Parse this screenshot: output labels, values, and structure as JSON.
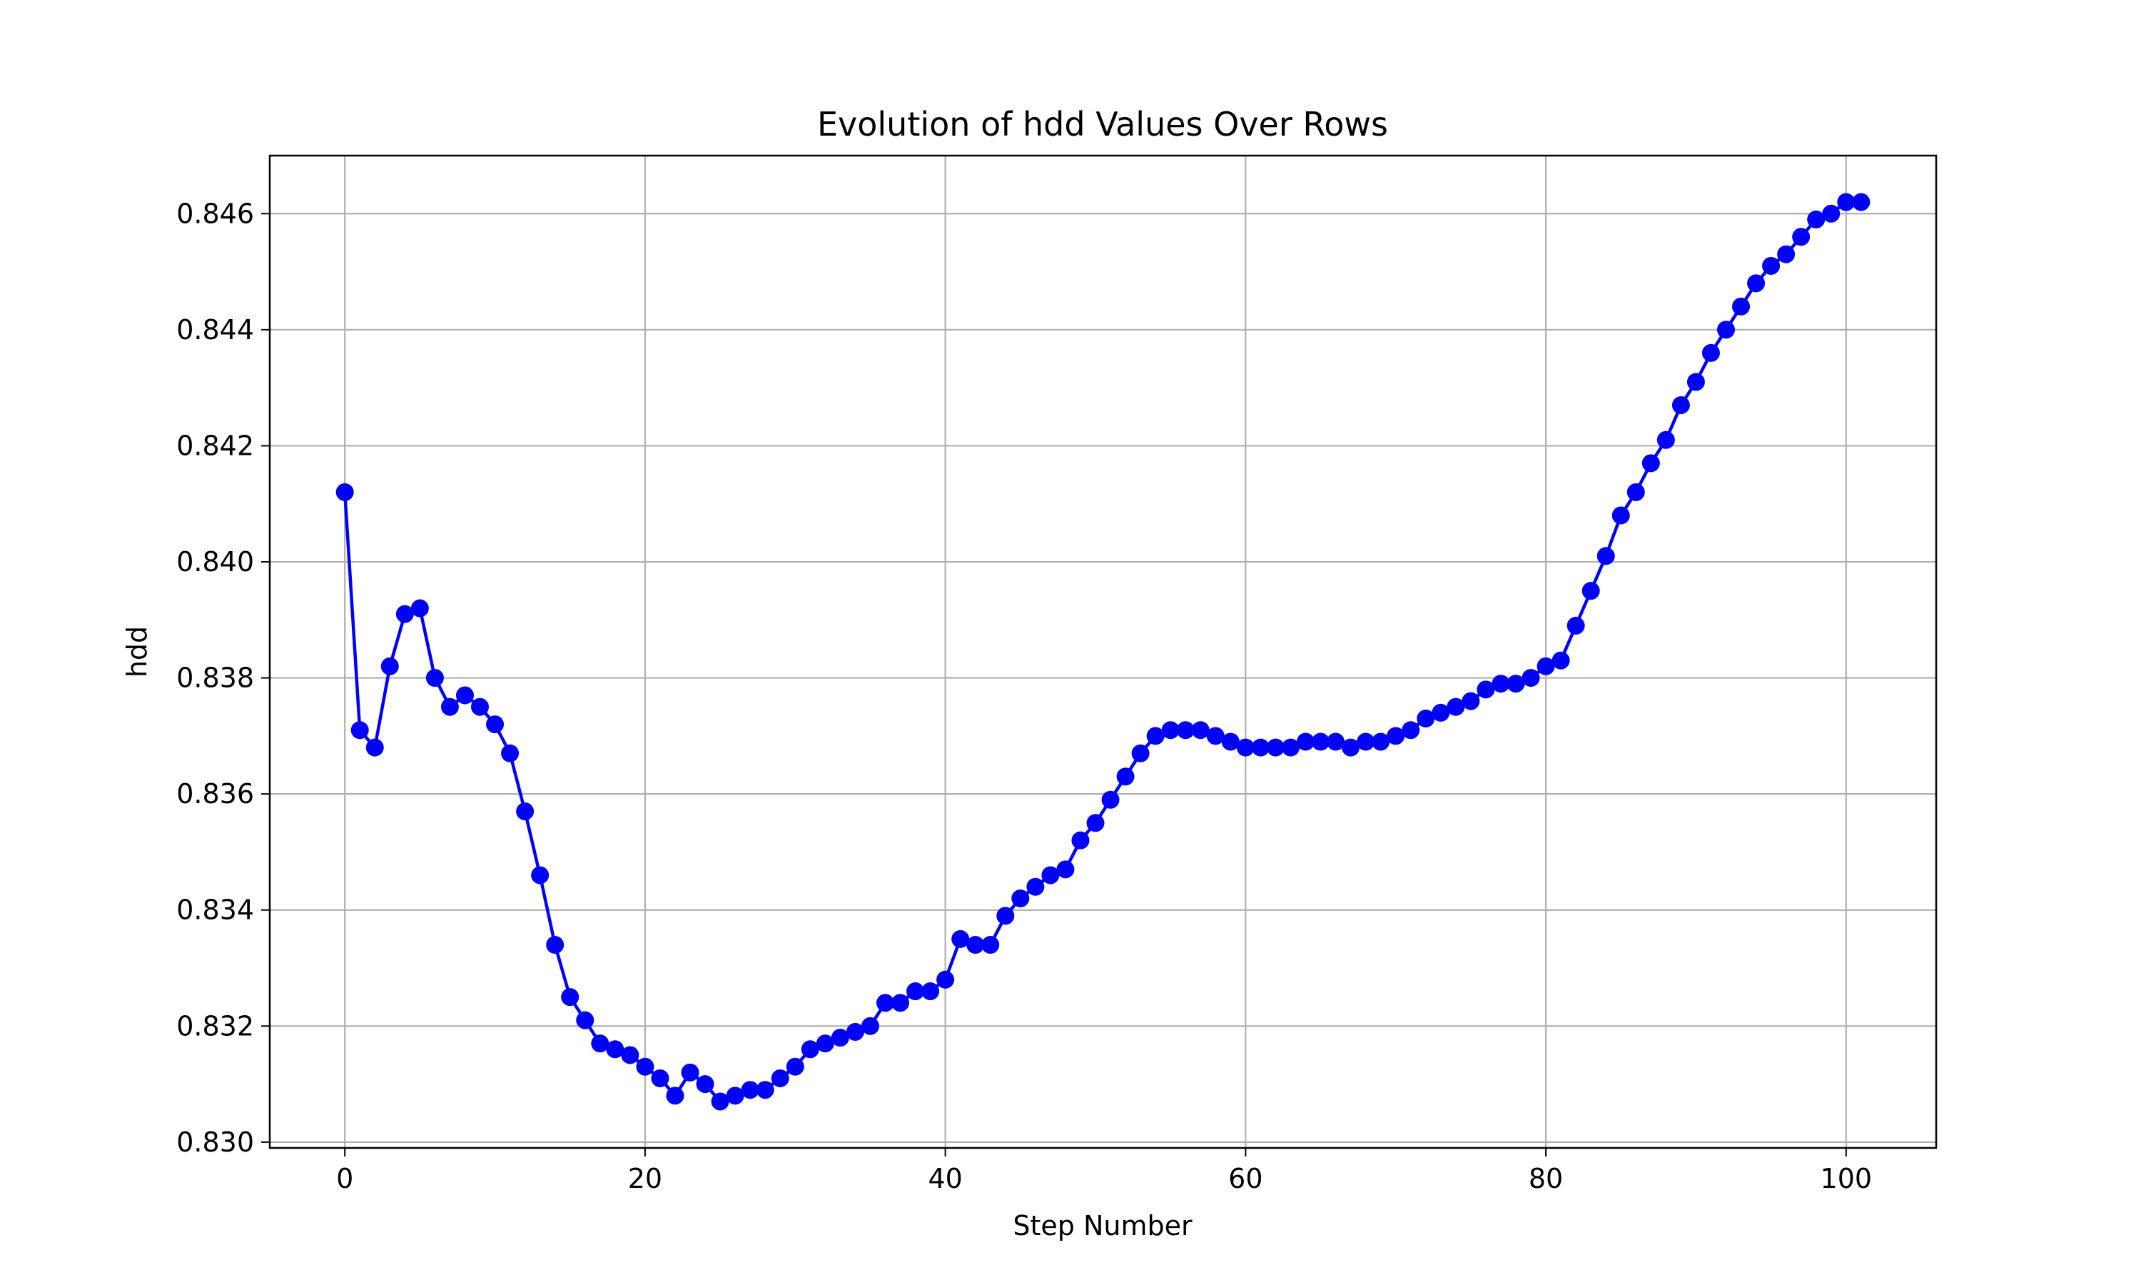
{
  "chart_data": {
    "type": "line",
    "title": "Evolution of hdd Values Over Rows",
    "xlabel": "Step Number",
    "ylabel": "hdd",
    "xlim": [
      -5,
      106
    ],
    "ylim": [
      0.8299,
      0.847
    ],
    "x_ticks": [
      0,
      20,
      40,
      60,
      80,
      100
    ],
    "y_ticks": [
      0.83,
      0.832,
      0.834,
      0.836,
      0.838,
      0.84,
      0.842,
      0.844,
      0.846
    ],
    "x_tick_labels": [
      "0",
      "20",
      "40",
      "60",
      "80",
      "100"
    ],
    "y_tick_labels": [
      "0.830",
      "0.832",
      "0.834",
      "0.836",
      "0.838",
      "0.840",
      "0.842",
      "0.844",
      "0.846"
    ],
    "grid": true,
    "legend": "none",
    "series": [
      {
        "color": "#0000ff",
        "marker": "circle",
        "x": [
          0,
          1,
          2,
          3,
          4,
          5,
          6,
          7,
          8,
          9,
          10,
          11,
          12,
          13,
          14,
          15,
          16,
          17,
          18,
          19,
          20,
          21,
          22,
          23,
          24,
          25,
          26,
          27,
          28,
          29,
          30,
          31,
          32,
          33,
          34,
          35,
          36,
          37,
          38,
          39,
          40,
          41,
          42,
          43,
          44,
          45,
          46,
          47,
          48,
          49,
          50,
          51,
          52,
          53,
          54,
          55,
          56,
          57,
          58,
          59,
          60,
          61,
          62,
          63,
          64,
          65,
          66,
          67,
          68,
          69,
          70,
          71,
          72,
          73,
          74,
          75,
          76,
          77,
          78,
          79,
          80,
          81,
          82,
          83,
          84,
          85,
          86,
          87,
          88,
          89,
          90,
          91,
          92,
          93,
          94,
          95,
          96,
          97,
          98,
          99,
          100,
          101
        ],
        "y": [
          0.8412,
          0.8371,
          0.8368,
          0.8382,
          0.8391,
          0.8392,
          0.838,
          0.8375,
          0.8377,
          0.8375,
          0.8372,
          0.8367,
          0.8357,
          0.8346,
          0.8334,
          0.8325,
          0.8321,
          0.8317,
          0.8316,
          0.8315,
          0.8313,
          0.8311,
          0.8308,
          0.8312,
          0.831,
          0.8307,
          0.8308,
          0.8309,
          0.8309,
          0.8311,
          0.8313,
          0.8316,
          0.8317,
          0.8318,
          0.8319,
          0.832,
          0.8324,
          0.8324,
          0.8326,
          0.8326,
          0.8328,
          0.8335,
          0.8334,
          0.8334,
          0.8339,
          0.8342,
          0.8344,
          0.8346,
          0.8347,
          0.8352,
          0.8355,
          0.8359,
          0.8363,
          0.8367,
          0.837,
          0.8371,
          0.8371,
          0.8371,
          0.837,
          0.8369,
          0.8368,
          0.8368,
          0.8368,
          0.8368,
          0.8369,
          0.8369,
          0.8369,
          0.8368,
          0.8369,
          0.8369,
          0.837,
          0.8371,
          0.8373,
          0.8374,
          0.8375,
          0.8376,
          0.8378,
          0.8379,
          0.8379,
          0.838,
          0.8382,
          0.8383,
          0.8389,
          0.8395,
          0.8401,
          0.8408,
          0.8412,
          0.8417,
          0.8421,
          0.8427,
          0.8431,
          0.8436,
          0.844,
          0.8444,
          0.8448,
          0.8451,
          0.8453,
          0.8456,
          0.8459,
          0.846,
          0.8462,
          0.8462
        ]
      }
    ]
  }
}
